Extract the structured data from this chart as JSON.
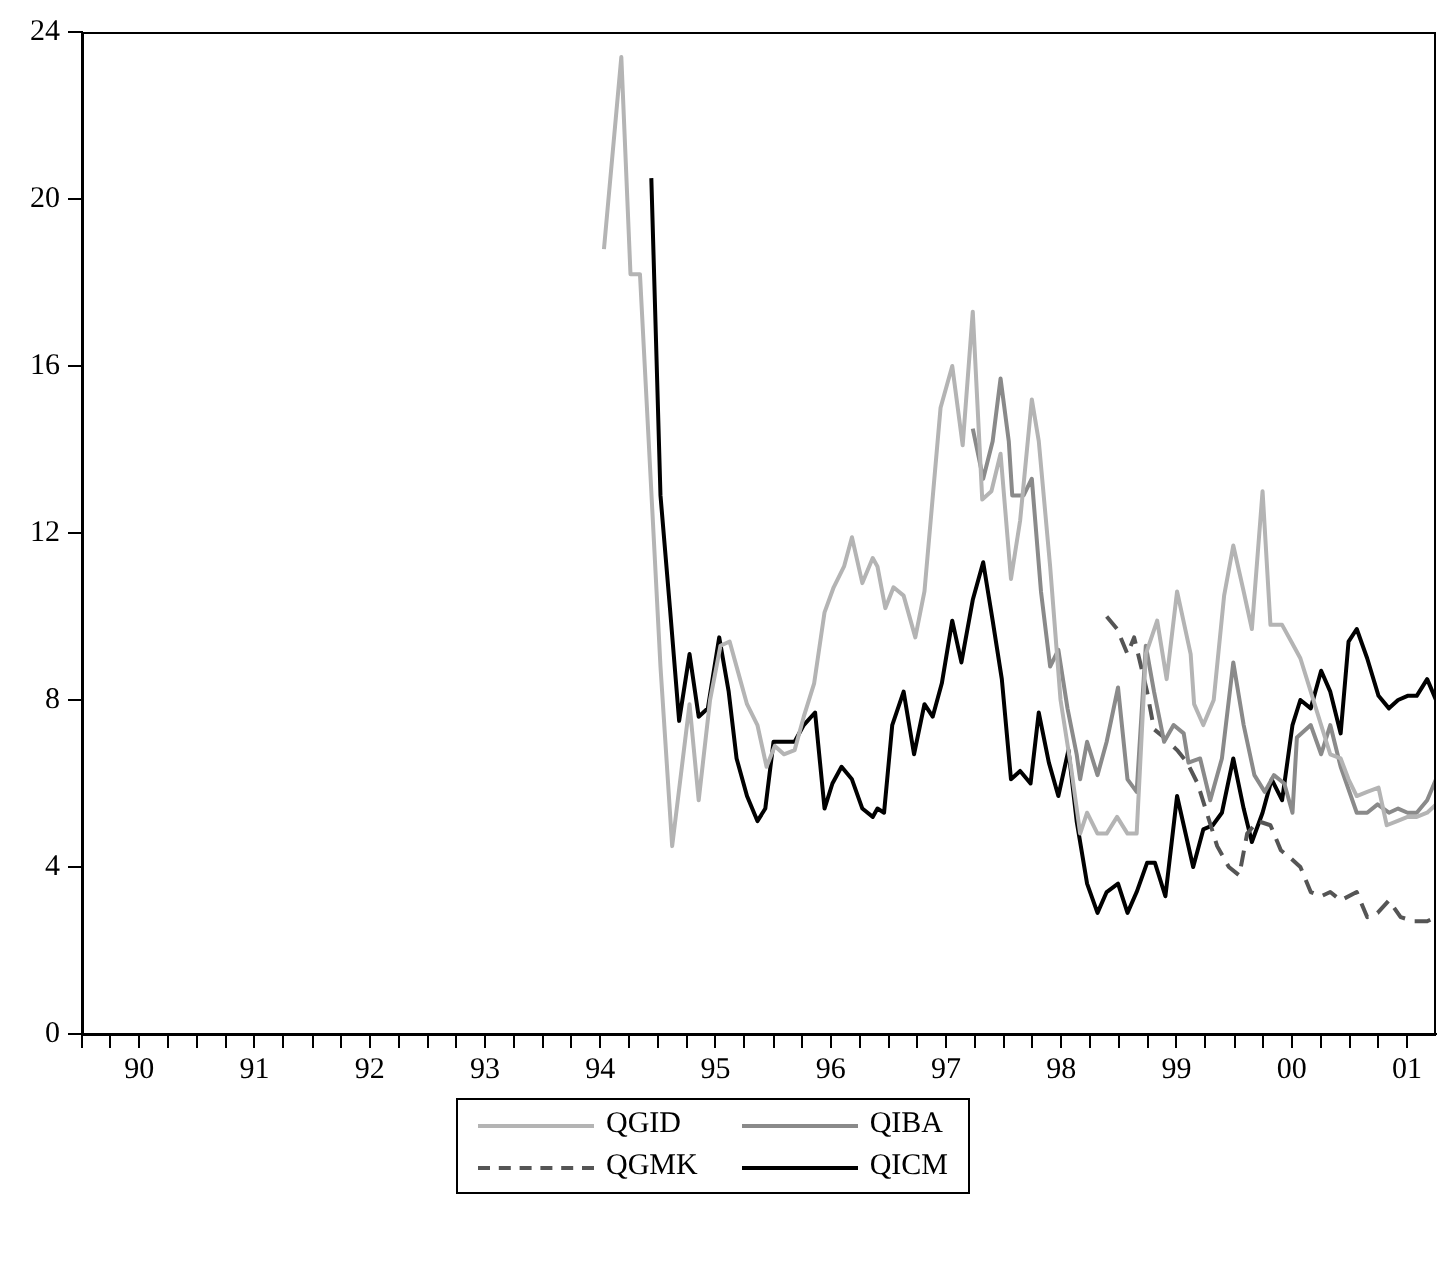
{
  "chart_data": {
    "type": "line",
    "xlim": [
      "1990-01-01",
      "2001-10-01"
    ],
    "ylim": [
      0,
      24
    ],
    "yticks": [
      0,
      4,
      8,
      12,
      16,
      20,
      24
    ],
    "xticks": [
      {
        "value": "1990-01-01",
        "label": null
      },
      {
        "value": "1990-04-01",
        "label": null
      },
      {
        "value": "1990-07-01",
        "label": "90"
      },
      {
        "value": "1990-10-01",
        "label": null
      },
      {
        "value": "1991-01-01",
        "label": null
      },
      {
        "value": "1991-04-01",
        "label": null
      },
      {
        "value": "1991-07-01",
        "label": "91"
      },
      {
        "value": "1991-10-01",
        "label": null
      },
      {
        "value": "1992-01-01",
        "label": null
      },
      {
        "value": "1992-04-01",
        "label": null
      },
      {
        "value": "1992-07-01",
        "label": "92"
      },
      {
        "value": "1992-10-01",
        "label": null
      },
      {
        "value": "1993-01-01",
        "label": null
      },
      {
        "value": "1993-04-01",
        "label": null
      },
      {
        "value": "1993-07-01",
        "label": "93"
      },
      {
        "value": "1993-10-01",
        "label": null
      },
      {
        "value": "1994-01-01",
        "label": null
      },
      {
        "value": "1994-04-01",
        "label": null
      },
      {
        "value": "1994-07-01",
        "label": "94"
      },
      {
        "value": "1994-10-01",
        "label": null
      },
      {
        "value": "1995-01-01",
        "label": null
      },
      {
        "value": "1995-04-01",
        "label": null
      },
      {
        "value": "1995-07-01",
        "label": "95"
      },
      {
        "value": "1995-10-01",
        "label": null
      },
      {
        "value": "1996-01-01",
        "label": null
      },
      {
        "value": "1996-04-01",
        "label": null
      },
      {
        "value": "1996-07-01",
        "label": "96"
      },
      {
        "value": "1996-10-01",
        "label": null
      },
      {
        "value": "1997-01-01",
        "label": null
      },
      {
        "value": "1997-04-01",
        "label": null
      },
      {
        "value": "1997-07-01",
        "label": "97"
      },
      {
        "value": "1997-10-01",
        "label": null
      },
      {
        "value": "1998-01-01",
        "label": null
      },
      {
        "value": "1998-04-01",
        "label": null
      },
      {
        "value": "1998-07-01",
        "label": "98"
      },
      {
        "value": "1998-10-01",
        "label": null
      },
      {
        "value": "1999-01-01",
        "label": null
      },
      {
        "value": "1999-04-01",
        "label": null
      },
      {
        "value": "1999-07-01",
        "label": "99"
      },
      {
        "value": "1999-10-01",
        "label": null
      },
      {
        "value": "2000-01-01",
        "label": null
      },
      {
        "value": "2000-04-01",
        "label": null
      },
      {
        "value": "2000-07-01",
        "label": "00"
      },
      {
        "value": "2000-10-01",
        "label": null
      },
      {
        "value": "2001-01-01",
        "label": null
      },
      {
        "value": "2001-04-01",
        "label": null
      },
      {
        "value": "2001-07-01",
        "label": "01"
      }
    ],
    "grid": false,
    "legend": "bottom",
    "marker": "none",
    "series": [
      {
        "name": "QGID",
        "color": "#b4b4b4",
        "line_style": "solid",
        "x": [
          "1994-07-13",
          "1994-09-06",
          "1994-10-05",
          "1994-11-04",
          "1995-01-08",
          "1995-02-14",
          "1995-04-10",
          "1995-05-09",
          "1995-06-14",
          "1995-07-17",
          "1995-08-15",
          "1995-09-06",
          "1995-10-09",
          "1995-11-11",
          "1995-12-10",
          "1996-01-05",
          "1996-02-03",
          "1996-03-08",
          "1996-04-06",
          "1996-05-09",
          "1996-06-11",
          "1996-07-10",
          "1996-08-12",
          "1996-09-06",
          "1996-10-09",
          "1996-11-11",
          "1996-11-26",
          "1996-12-21",
          "1997-01-16",
          "1997-02-17",
          "1997-03-26",
          "1997-04-24",
          "1997-06-14",
          "1997-07-21",
          "1997-08-23",
          "1997-09-24",
          "1997-10-24",
          "1997-11-22",
          "1997-12-21",
          "1998-01-23",
          "1998-02-21",
          "1998-03-30",
          "1998-04-21",
          "1998-05-27",
          "1998-06-29",
          "1998-08-01",
          "1998-08-30",
          "1998-09-21",
          "1998-10-24",
          "1998-11-22",
          "1998-12-25",
          "1999-01-27",
          "1999-02-25",
          "1999-03-26",
          "1999-05-01",
          "1999-05-31",
          "1999-07-03",
          "1999-08-15",
          "1999-08-26",
          "1999-09-24",
          "1999-10-27",
          "1999-11-29",
          "1999-12-28",
          "2000-01-30",
          "2000-02-25",
          "2000-03-30",
          "2000-04-24",
          "2000-05-31",
          "2000-06-29",
          "2000-07-28",
          "2000-08-30",
          "2000-10-02",
          "2000-10-31",
          "2000-12-03",
          "2000-12-28",
          "2001-01-23",
          "2001-02-25",
          "2001-04-02",
          "2001-04-28",
          "2001-05-31",
          "2001-07-03",
          "2001-08-01",
          "2001-09-03",
          "2001-10-01"
        ],
        "values": [
          18.8,
          23.4,
          18.2,
          18.2,
          8.8,
          4.5,
          7.9,
          5.6,
          8.0,
          9.3,
          9.4,
          8.8,
          7.9,
          7.4,
          6.4,
          6.9,
          6.7,
          6.8,
          7.6,
          8.4,
          10.1,
          10.7,
          11.2,
          11.9,
          10.8,
          11.4,
          11.2,
          10.2,
          10.7,
          10.5,
          9.5,
          10.6,
          15.0,
          16.0,
          14.1,
          17.3,
          12.8,
          13.0,
          13.9,
          10.9,
          12.3,
          15.2,
          14.2,
          11.2,
          8.0,
          6.4,
          4.8,
          5.3,
          4.8,
          4.8,
          5.2,
          4.8,
          4.8,
          9.1,
          9.9,
          8.5,
          10.6,
          9.1,
          7.9,
          7.4,
          8.0,
          10.5,
          11.7,
          10.6,
          9.7,
          13.0,
          9.8,
          9.8,
          9.4,
          9.0,
          8.2,
          7.4,
          6.7,
          6.6,
          6.1,
          5.7,
          5.8,
          5.9,
          5.0,
          5.1,
          5.2,
          5.2,
          5.3,
          5.5
        ]
      },
      {
        "name": "QIBA",
        "color": "#8a8a8a",
        "line_style": "solid",
        "x": [
          "1997-09-24",
          "1997-10-27",
          "1997-11-26",
          "1997-12-21",
          "1998-01-16",
          "1998-01-27",
          "1998-03-04",
          "1998-03-30",
          "1998-04-28",
          "1998-05-27",
          "1998-06-22",
          "1998-07-21",
          "1998-08-19",
          "1998-08-30",
          "1998-09-21",
          "1998-10-24",
          "1998-11-22",
          "1998-12-28",
          "1999-01-27",
          "1999-02-25",
          "1999-03-26",
          "1999-04-21",
          "1999-05-23",
          "1999-06-22",
          "1999-07-24",
          "1999-08-08",
          "1999-09-14",
          "1999-10-16",
          "1999-11-22",
          "1999-12-28",
          "2000-01-30",
          "2000-03-04",
          "2000-04-06",
          "2000-05-05",
          "2000-06-07",
          "2000-07-03",
          "2000-07-17",
          "2000-08-30",
          "2000-10-02",
          "2000-10-31",
          "2000-12-03",
          "2001-01-23",
          "2001-02-25",
          "2001-03-30",
          "2001-05-05",
          "2001-06-03",
          "2001-07-03",
          "2001-08-01",
          "2001-09-03",
          "2001-10-01"
        ],
        "values": [
          14.5,
          13.3,
          14.2,
          15.7,
          14.2,
          12.9,
          12.9,
          13.3,
          10.6,
          8.8,
          9.2,
          7.8,
          6.7,
          6.1,
          7.0,
          6.2,
          7.0,
          8.3,
          6.1,
          5.8,
          9.3,
          8.2,
          7.0,
          7.4,
          7.2,
          6.5,
          6.6,
          5.6,
          6.6,
          8.9,
          7.4,
          6.2,
          5.8,
          6.2,
          6.0,
          5.3,
          7.1,
          7.4,
          6.7,
          7.4,
          6.4,
          5.3,
          5.3,
          5.5,
          5.3,
          5.4,
          5.3,
          5.3,
          5.6,
          6.1
        ]
      },
      {
        "name": "QGMK",
        "color": "#555555",
        "line_style": "dashed",
        "x": [
          "1998-11-22",
          "1998-12-25",
          "1999-01-27",
          "1999-02-17",
          "1999-03-30",
          "1999-04-21",
          "1999-05-23",
          "1999-07-03",
          "1999-08-04",
          "1999-09-06",
          "1999-10-05",
          "1999-11-07",
          "1999-12-14",
          "2000-01-16",
          "2000-02-10",
          "2000-03-15",
          "2000-04-24",
          "2000-05-27",
          "2000-06-29",
          "2000-07-28",
          "2000-08-30",
          "2000-10-02",
          "2000-10-31",
          "2000-12-03",
          "2001-01-23",
          "2001-02-25",
          "2001-03-30",
          "2001-05-05",
          "2001-06-11",
          "2001-07-24",
          "2001-09-03",
          "2001-10-01"
        ],
        "values": [
          10.0,
          9.7,
          9.1,
          9.5,
          8.2,
          7.3,
          7.1,
          6.8,
          6.5,
          6.0,
          5.3,
          4.5,
          4.0,
          3.8,
          4.8,
          5.1,
          5.0,
          4.4,
          4.2,
          4.0,
          3.4,
          3.3,
          3.4,
          3.2,
          3.4,
          2.8,
          2.9,
          3.2,
          2.8,
          2.7,
          2.7,
          2.8
        ]
      },
      {
        "name": "QICM",
        "color": "#000000",
        "line_style": "solid",
        "x": [
          "1994-12-10",
          "1995-01-08",
          "1995-02-07",
          "1995-03-08",
          "1995-04-10",
          "1995-05-09",
          "1995-06-07",
          "1995-07-13",
          "1995-08-12",
          "1995-09-06",
          "1995-10-09",
          "1995-11-11",
          "1995-12-06",
          "1996-01-01",
          "1996-02-03",
          "1996-03-08",
          "1996-04-06",
          "1996-05-12",
          "1996-06-11",
          "1996-07-06",
          "1996-08-04",
          "1996-09-06",
          "1996-10-09",
          "1996-11-11",
          "1996-11-26",
          "1996-12-17",
          "1997-01-12",
          "1997-02-17",
          "1997-03-22",
          "1997-04-24",
          "1997-05-20",
          "1997-06-18",
          "1997-07-21",
          "1997-08-19",
          "1997-09-24",
          "1997-10-27",
          "1997-11-26",
          "1997-12-25",
          "1998-01-23",
          "1998-02-21",
          "1998-03-26",
          "1998-04-21",
          "1998-05-23",
          "1998-06-22",
          "1998-07-24",
          "1998-08-19",
          "1998-09-21",
          "1998-10-24",
          "1998-11-22",
          "1998-12-28",
          "1999-01-27",
          "1999-02-25",
          "1999-03-30",
          "1999-04-24",
          "1999-05-27",
          "1999-07-03",
          "1999-08-23",
          "1999-09-24",
          "1999-10-24",
          "1999-11-22",
          "1999-12-28",
          "2000-01-30",
          "2000-02-25",
          "2000-03-30",
          "2000-04-28",
          "2000-05-31",
          "2000-07-03",
          "2000-07-28",
          "2000-08-30",
          "2000-10-02",
          "2000-10-31",
          "2000-12-03",
          "2000-12-28",
          "2001-01-23",
          "2001-02-25",
          "2001-04-02",
          "2001-05-05",
          "2001-06-03",
          "2001-07-03",
          "2001-08-01",
          "2001-09-03",
          "2001-10-01"
        ],
        "values": [
          20.5,
          12.9,
          10.2,
          7.5,
          9.1,
          7.6,
          7.8,
          9.5,
          8.2,
          6.6,
          5.7,
          5.1,
          5.4,
          7.0,
          7.0,
          7.0,
          7.4,
          7.7,
          5.4,
          6.0,
          6.4,
          6.1,
          5.4,
          5.2,
          5.4,
          5.3,
          7.4,
          8.2,
          6.7,
          7.9,
          7.6,
          8.4,
          9.9,
          8.9,
          10.4,
          11.3,
          9.9,
          8.5,
          6.1,
          6.3,
          6.0,
          7.7,
          6.5,
          5.7,
          6.8,
          5.1,
          3.6,
          2.9,
          3.4,
          3.6,
          2.9,
          3.4,
          4.1,
          4.1,
          3.3,
          5.7,
          4.0,
          4.9,
          5.0,
          5.3,
          6.6,
          5.4,
          4.6,
          5.3,
          6.1,
          5.6,
          7.4,
          8.0,
          7.8,
          8.7,
          8.2,
          7.2,
          9.4,
          9.7,
          9.0,
          8.1,
          7.8,
          8.0,
          8.1,
          8.1,
          8.5,
          8.0
        ]
      }
    ]
  }
}
